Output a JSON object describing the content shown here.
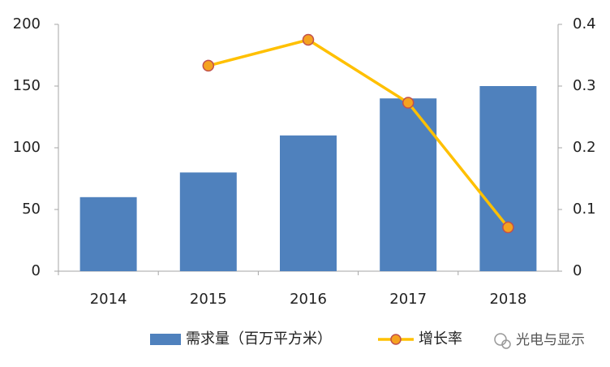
{
  "chart_data": {
    "type": "bar",
    "categories": [
      "2014",
      "2015",
      "2016",
      "2017",
      "2018"
    ],
    "series": [
      {
        "name": "需求量（百万平方米）",
        "type": "bar",
        "color": "#4f81bd",
        "values": [
          60,
          80,
          110,
          140,
          150
        ]
      },
      {
        "name": "增长率",
        "type": "line",
        "color": "#ffc000",
        "marker_color": "#f5a21f",
        "marker_edge": "#c0504d",
        "axis": "y2",
        "values": [
          null,
          0.333,
          0.375,
          0.273,
          0.071
        ]
      }
    ],
    "ylim": [
      0,
      200
    ],
    "yticks": [
      0,
      50,
      100,
      150,
      200
    ],
    "y2lim": [
      0,
      0.4
    ],
    "y2ticks": [
      0,
      0.1,
      0.2,
      0.3,
      0.4
    ],
    "grid": false,
    "legend": "bottom",
    "watermark": "光电与显示"
  }
}
